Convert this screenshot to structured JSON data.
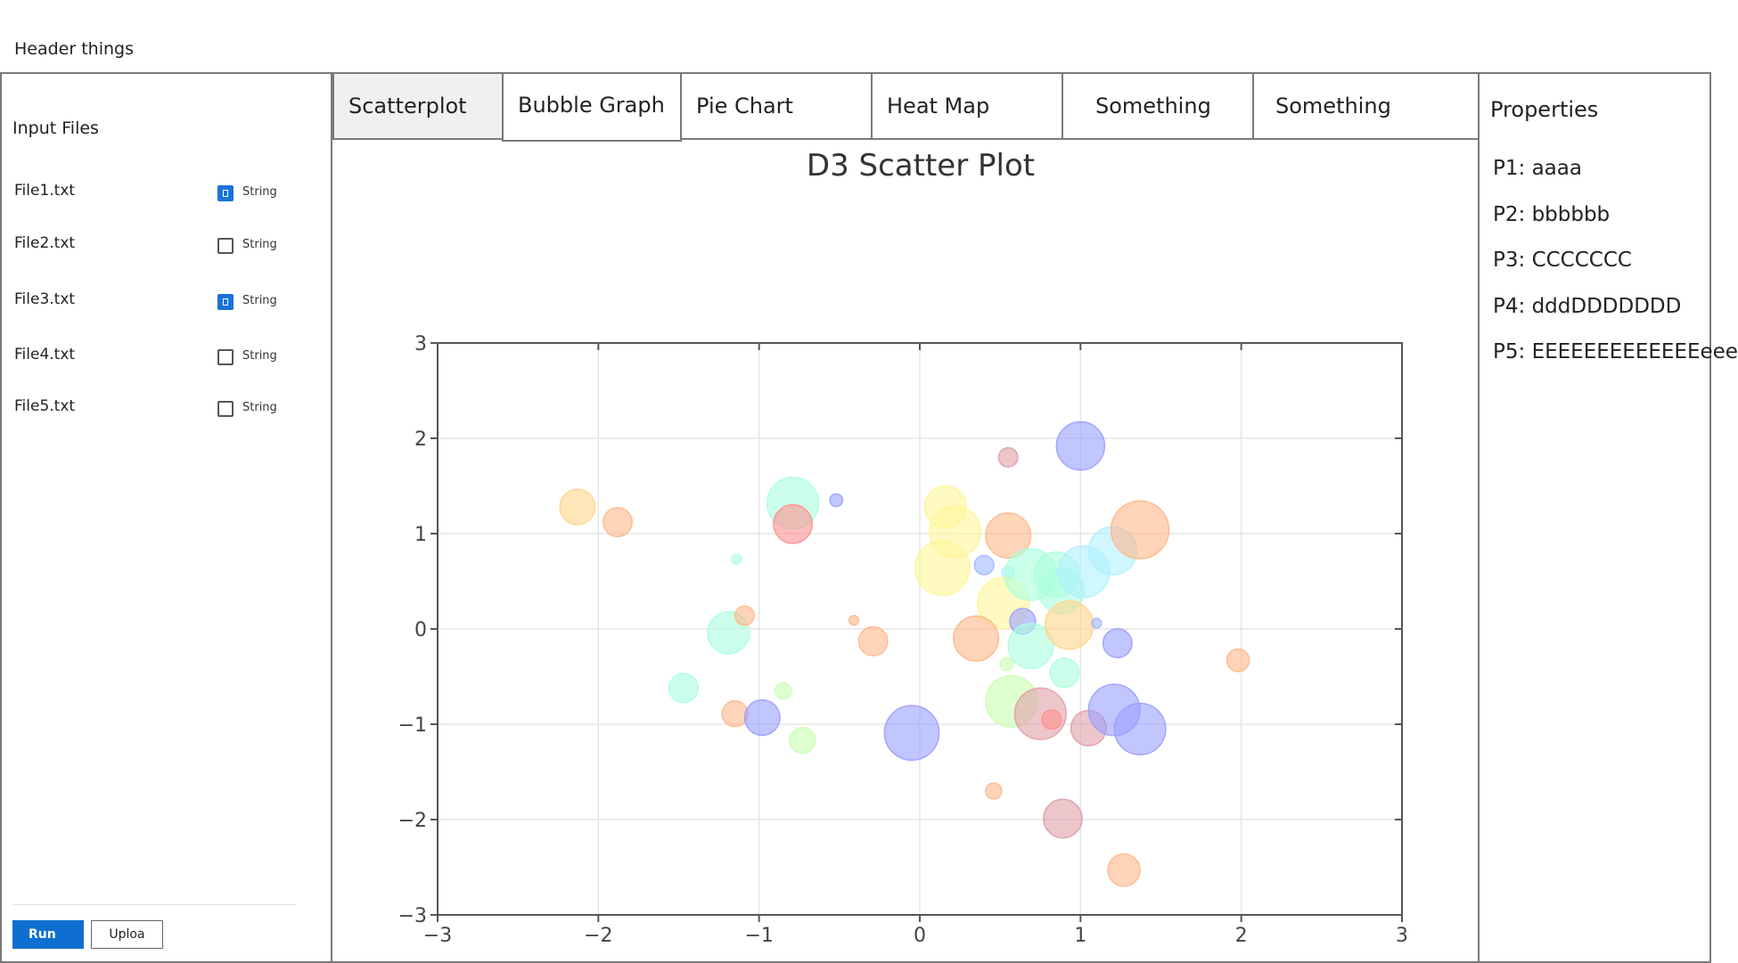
{
  "header": {
    "title": "Header things"
  },
  "left_panel": {
    "title": "Input Files",
    "files": [
      {
        "name": "File1.txt",
        "checked": true,
        "type_label": "String"
      },
      {
        "name": "File2.txt",
        "checked": false,
        "type_label": "String"
      },
      {
        "name": "File3.txt",
        "checked": true,
        "type_label": "String"
      },
      {
        "name": "File4.txt",
        "checked": false,
        "type_label": "String"
      },
      {
        "name": "File5.txt",
        "checked": false,
        "type_label": "String"
      }
    ],
    "run_label": "Run",
    "upload_label": "Uploa"
  },
  "tabs": [
    {
      "label": "Scatterplot",
      "active": true
    },
    {
      "label": "Bubble Graph",
      "active": false
    },
    {
      "label": "Pie Chart",
      "active": false
    },
    {
      "label": "Heat Map",
      "active": false
    },
    {
      "label": "Something",
      "active": false
    },
    {
      "label": "Something",
      "active": false
    }
  ],
  "properties": {
    "title": "Properties",
    "items": [
      "P1: aaaa",
      "P2: bbbbbb",
      "P3: CCCCCCC",
      "P4: dddDDDDDDD",
      "P5: EEEEEEEEEEEEEeee"
    ]
  },
  "colors": {
    "accent": "#1a73d8",
    "run_button": "#0f6fd0",
    "border": "#7a7a7a",
    "bubble_palette": [
      "#ffd58a",
      "#ffb88a",
      "#aaffdd",
      "#b0f0ff",
      "#fff59a",
      "#9aa0ff",
      "#e0a0a8",
      "#c8ffb0",
      "#ff9090",
      "#a0b8ff"
    ]
  },
  "chart_data": {
    "type": "scatter",
    "title": "D3 Scatter Plot",
    "xlabel": "",
    "ylabel": "",
    "xlim": [
      -3,
      3
    ],
    "ylim": [
      -3,
      3
    ],
    "xticks": [
      -3,
      -2,
      -1,
      0,
      1,
      2,
      3
    ],
    "yticks": [
      -3,
      -2,
      -1,
      0,
      1,
      2,
      3
    ],
    "grid": true,
    "points": [
      {
        "x": -2.13,
        "y": 1.28,
        "r": 0.11,
        "c": 0
      },
      {
        "x": -1.88,
        "y": 1.12,
        "r": 0.09,
        "c": 1
      },
      {
        "x": -0.79,
        "y": 1.32,
        "r": 0.16,
        "c": 2
      },
      {
        "x": -0.79,
        "y": 1.1,
        "r": 0.12,
        "c": 8
      },
      {
        "x": -0.52,
        "y": 1.35,
        "r": 0.04,
        "c": 5
      },
      {
        "x": -1.14,
        "y": 0.73,
        "r": 0.03,
        "c": 2
      },
      {
        "x": -1.19,
        "y": -0.04,
        "r": 0.13,
        "c": 2
      },
      {
        "x": -1.09,
        "y": 0.14,
        "r": 0.06,
        "c": 1
      },
      {
        "x": -1.47,
        "y": -0.62,
        "r": 0.09,
        "c": 2
      },
      {
        "x": -1.15,
        "y": -0.89,
        "r": 0.08,
        "c": 1
      },
      {
        "x": -0.98,
        "y": -0.93,
        "r": 0.11,
        "c": 5
      },
      {
        "x": -0.85,
        "y": -0.65,
        "r": 0.05,
        "c": 7
      },
      {
        "x": -0.73,
        "y": -1.17,
        "r": 0.08,
        "c": 7
      },
      {
        "x": -0.41,
        "y": 0.09,
        "r": 0.03,
        "c": 1
      },
      {
        "x": -0.29,
        "y": -0.13,
        "r": 0.09,
        "c": 1
      },
      {
        "x": -0.05,
        "y": -1.09,
        "r": 0.17,
        "c": 5
      },
      {
        "x": 0.16,
        "y": 1.28,
        "r": 0.13,
        "c": 4
      },
      {
        "x": 0.22,
        "y": 1.02,
        "r": 0.16,
        "c": 4
      },
      {
        "x": 0.14,
        "y": 0.64,
        "r": 0.17,
        "c": 4
      },
      {
        "x": 0.55,
        "y": 1.8,
        "r": 0.06,
        "c": 6
      },
      {
        "x": 0.55,
        "y": 0.98,
        "r": 0.14,
        "c": 1
      },
      {
        "x": 0.4,
        "y": 0.67,
        "r": 0.06,
        "c": 9
      },
      {
        "x": 0.55,
        "y": 0.59,
        "r": 0.04,
        "c": 3
      },
      {
        "x": 0.52,
        "y": 0.27,
        "r": 0.16,
        "c": 4
      },
      {
        "x": 0.35,
        "y": -0.1,
        "r": 0.14,
        "c": 1
      },
      {
        "x": 0.64,
        "y": 0.08,
        "r": 0.08,
        "c": 5
      },
      {
        "x": 0.69,
        "y": 0.57,
        "r": 0.16,
        "c": 2
      },
      {
        "x": 0.69,
        "y": -0.18,
        "r": 0.14,
        "c": 2
      },
      {
        "x": 0.54,
        "y": -0.37,
        "r": 0.04,
        "c": 7
      },
      {
        "x": 0.85,
        "y": 0.57,
        "r": 0.14,
        "c": 2
      },
      {
        "x": 0.88,
        "y": 0.4,
        "r": 0.14,
        "c": 2
      },
      {
        "x": 1.02,
        "y": 0.6,
        "r": 0.16,
        "c": 3
      },
      {
        "x": 1.2,
        "y": 0.82,
        "r": 0.15,
        "c": 3
      },
      {
        "x": 1.37,
        "y": 1.04,
        "r": 0.18,
        "c": 1
      },
      {
        "x": 1.0,
        "y": 1.92,
        "r": 0.15,
        "c": 5
      },
      {
        "x": 0.93,
        "y": 0.04,
        "r": 0.15,
        "c": 0
      },
      {
        "x": 1.1,
        "y": 0.06,
        "r": 0.03,
        "c": 9
      },
      {
        "x": 1.23,
        "y": -0.15,
        "r": 0.09,
        "c": 5
      },
      {
        "x": 0.9,
        "y": -0.46,
        "r": 0.09,
        "c": 2
      },
      {
        "x": 0.57,
        "y": -0.76,
        "r": 0.16,
        "c": 7
      },
      {
        "x": 0.75,
        "y": -0.89,
        "r": 0.16,
        "c": 6
      },
      {
        "x": 0.82,
        "y": -0.95,
        "r": 0.06,
        "c": 8
      },
      {
        "x": 1.05,
        "y": -1.04,
        "r": 0.11,
        "c": 6
      },
      {
        "x": 1.21,
        "y": -0.85,
        "r": 0.16,
        "c": 5
      },
      {
        "x": 1.37,
        "y": -1.05,
        "r": 0.16,
        "c": 5
      },
      {
        "x": 0.46,
        "y": -1.7,
        "r": 0.05,
        "c": 1
      },
      {
        "x": 0.89,
        "y": -1.99,
        "r": 0.12,
        "c": 6
      },
      {
        "x": 1.27,
        "y": -2.53,
        "r": 0.1,
        "c": 1
      },
      {
        "x": 1.98,
        "y": -0.33,
        "r": 0.07,
        "c": 1
      }
    ]
  }
}
